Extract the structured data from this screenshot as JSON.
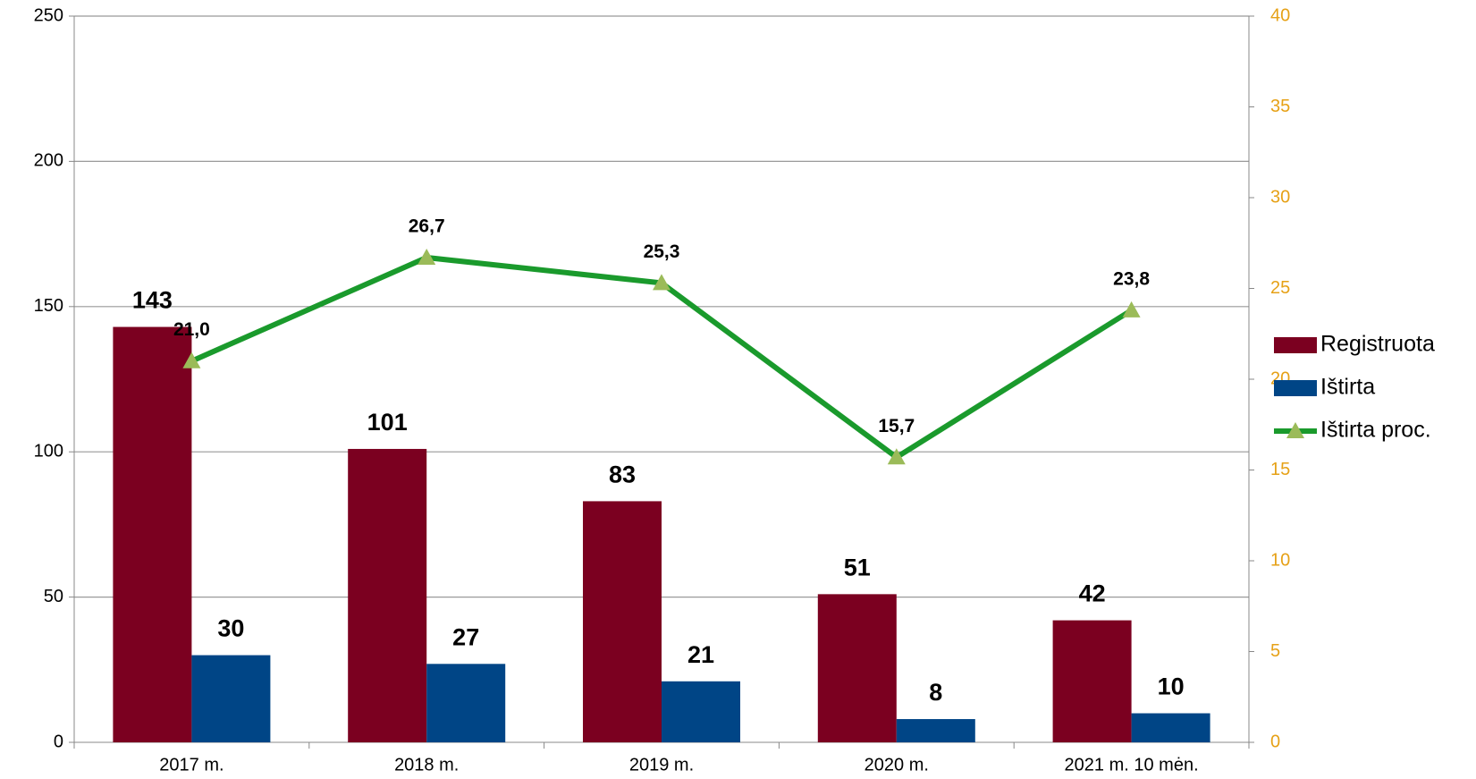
{
  "chart_data": {
    "type": "bar_line",
    "categories": [
      "2017 m.",
      "2018 m.",
      "2019 m.",
      "2020 m.",
      "2021 m. 10 mėn."
    ],
    "series": [
      {
        "name": "Registruota",
        "color": "#7b0020",
        "values": [
          143,
          101,
          83,
          51,
          42
        ]
      },
      {
        "name": "Ištirta",
        "color": "#004586",
        "values": [
          30,
          27,
          21,
          8,
          10
        ]
      },
      {
        "name": "Ištirta proc.",
        "color": "#1a9a2c",
        "marker_color": "#9bbb59",
        "axis": "y2",
        "type": "line",
        "values": [
          21.0,
          26.7,
          25.3,
          15.7,
          23.8
        ],
        "value_labels": [
          "21,0",
          "26,7",
          "25,3",
          "15,7",
          "23,8"
        ]
      }
    ],
    "ylim": [
      0,
      250
    ],
    "yticks": [
      0,
      50,
      100,
      150,
      200,
      250
    ],
    "y2lim": [
      0,
      40
    ],
    "y2ticks": [
      0,
      5,
      10,
      15,
      20,
      25,
      30,
      35,
      40
    ],
    "y2_color": "#e6a117",
    "grid": true,
    "legend": "right"
  }
}
